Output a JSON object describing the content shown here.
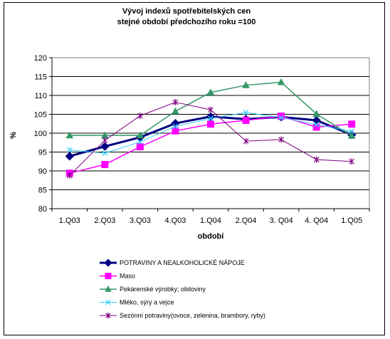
{
  "chart_data": {
    "type": "line",
    "title": [
      "Vývoj indexů spotřebitelských cen",
      "stejné období předchozího roku =100"
    ],
    "xlabel": "období",
    "ylabel": "%",
    "ylim": [
      80,
      120
    ],
    "yticks": [
      80,
      85,
      90,
      95,
      100,
      105,
      110,
      115,
      120
    ],
    "grid": true,
    "legend_position": "bottom",
    "categories": [
      "1.Q03",
      "2.Q03",
      "3.Q03",
      "4.Q03",
      "1.Q04",
      "2.Q04",
      "3. Q04",
      "4. Q04",
      "1.Q05"
    ],
    "series": [
      {
        "name": "POTRAVINY A NEALKOHOLICKÉ NÁPOJE",
        "color": "#000080",
        "marker": "diamond",
        "values": [
          93.9,
          96.5,
          98.9,
          102.6,
          104.4,
          103.7,
          104.3,
          103.4,
          99.6
        ]
      },
      {
        "name": "Maso",
        "color": "#ff00ff",
        "marker": "square",
        "values": [
          89.4,
          91.7,
          96.4,
          100.6,
          102.4,
          103.4,
          104.5,
          101.6,
          102.4
        ]
      },
      {
        "name": "Pekárenské výrobky; obiloviny",
        "color": "#339966",
        "marker": "triangle",
        "values": [
          99.4,
          99.4,
          99.4,
          105.8,
          110.8,
          112.7,
          113.5,
          105.1,
          99.3
        ]
      },
      {
        "name": "Mléko, sýry a vejce",
        "color": "#33ccff",
        "marker": "x",
        "values": [
          95.6,
          94.7,
          97.7,
          101.8,
          103.9,
          105.5,
          104.1,
          102.3,
          100.5
        ]
      },
      {
        "name": "Sezónní potraviny(ovoce, zelenina, brambory, ryby)",
        "color": "#800080",
        "marker": "star",
        "values": [
          88.8,
          98.1,
          104.6,
          108.2,
          106.2,
          97.9,
          98.3,
          93.0,
          92.5
        ]
      }
    ]
  }
}
